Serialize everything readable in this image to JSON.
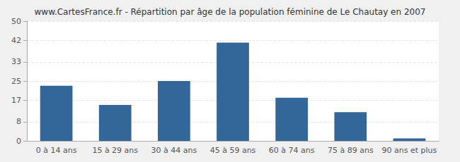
{
  "chart_data": {
    "type": "bar",
    "title": "www.CartesFrance.fr - Répartition par âge de la population féminine de Le Chautay en 2007",
    "categories": [
      "0 à 14 ans",
      "15 à 29 ans",
      "30 à 44 ans",
      "45 à 59 ans",
      "60 à 74 ans",
      "75 à 89 ans",
      "90 ans et plus"
    ],
    "values": [
      23,
      15,
      25,
      41,
      18,
      12,
      1
    ],
    "color": "#336699",
    "ylim": [
      0,
      50
    ],
    "yticks": [
      0,
      8,
      17,
      25,
      33,
      42,
      50
    ],
    "grid": true
  }
}
